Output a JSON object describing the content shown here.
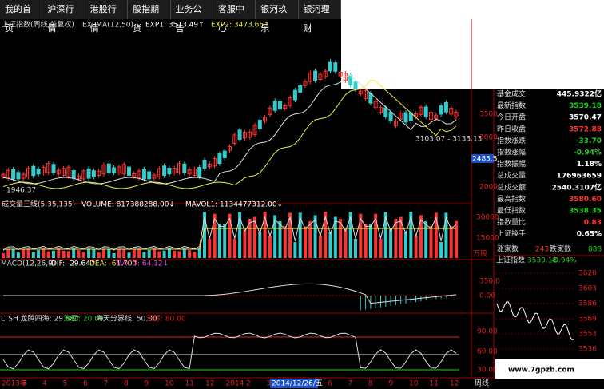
{
  "menu": [
    "我的首页",
    "沪深行情",
    "港股行情",
    "股指期货",
    "业务公告",
    "客服中心",
    "银河玖乐",
    "银河理财"
  ],
  "price_panel": {
    "title": "上证指数(周线 前复权)",
    "indicator": "EXPMA(12,50)",
    "exp1": "EXP1: 3513.49↑",
    "exp2": "EXP2: 3473.66↑",
    "axis_labels": [
      "3500",
      "3000",
      "2000"
    ],
    "current": "2485.5",
    "low_label": "1946.37",
    "range_label": "3103.07 - 3133.13"
  },
  "volume_panel": {
    "title": "成交量三线(5,35,135)",
    "volume": "VOLUME: 817388288.00↓",
    "mavol1": "MAVOL1: 1134477312.00↓",
    "axis_labels": [
      "30000",
      "15000"
    ],
    "unit": "万股"
  },
  "macd_panel": {
    "title": "MACD(12,26,9)",
    "dif": "DIF: -29.64↑",
    "dea": "DEA: -61.70↑",
    "macd": "MACD: 64.12↓",
    "axis_labels": [
      "350.0",
      "0.00"
    ]
  },
  "ltsh_panel": {
    "title": "LTSH 龙腾四海: 29.58↑",
    "sea": "海面: 20.00",
    "divide": "海天分界线: 50.00",
    "sky": "天际: 80.00",
    "axis_labels": [
      "90.00",
      "60.00",
      "30.00"
    ]
  },
  "x_axis": {
    "labels": [
      "2013年",
      "3",
      "4",
      "5",
      "6",
      "7",
      "8",
      "9",
      "10",
      "11",
      "12",
      "2014",
      "2",
      "3",
      "4",
      "5",
      "6",
      "7",
      "8",
      "9",
      "10",
      "11",
      "12"
    ],
    "cursor": "2014/12/26/五",
    "period": "周线"
  },
  "quote_table": {
    "rows": [
      [
        "基金成交",
        "445.9322亿"
      ],
      [
        "最新指数",
        "3539.18"
      ],
      [
        "今日开盘",
        "3570.47"
      ],
      [
        "昨日收盘",
        "3572.88"
      ],
      [
        "指数涨跌",
        "-33.70"
      ],
      [
        "指数涨幅",
        "-0.94%"
      ],
      [
        "指数振幅",
        "1.18%"
      ],
      [
        "总成交量",
        "176963659"
      ],
      [
        "总成交额",
        "2540.3107亿"
      ],
      [
        "最高指数",
        "3580.60"
      ],
      [
        "最低指数",
        "3538.35"
      ],
      [
        "指数量比",
        "0.83"
      ],
      [
        "上证换手",
        "0.65%"
      ]
    ],
    "breadth": {
      "up_label": "涨家数",
      "up": "243",
      "down_label": "跌家数",
      "down": "888"
    }
  },
  "mini_chart": {
    "title": "上证指数",
    "price": "3539.18",
    "change": "-0.94%",
    "axis_labels": [
      "3620",
      "3603",
      "3586",
      "3569",
      "3553",
      "3536"
    ]
  },
  "watermark": "www.7gpzb.com"
}
